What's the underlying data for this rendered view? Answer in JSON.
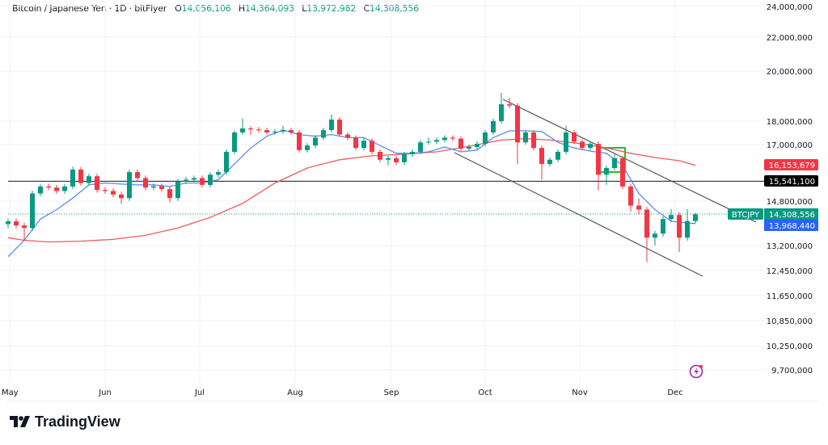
{
  "header": {
    "symbol_line": "Bitcoin / Japanese Yen · 1D · bitFlyer",
    "o_label": "O",
    "o_value": "14,056,106",
    "h_label": "H",
    "h_value": "14,364,093",
    "l_label": "L",
    "l_value": "13,972,982",
    "c_label": "C",
    "c_value": "14,308,556"
  },
  "chart_data": {
    "type": "candlestick",
    "title": "Bitcoin / Japanese Yen · 1D · bitFlyer",
    "y_scale": "log",
    "grid": true,
    "y_ticks": [
      "24,000,000",
      "22,000,000",
      "20,000,000",
      "18,000,000",
      "17,000,000",
      "14,800,000",
      "13,200,000",
      "12,450,000",
      "11,650,000",
      "10,850,000",
      "10,250,000",
      "9,700,000"
    ],
    "x_ticks": [
      "May",
      "Jun",
      "Jul",
      "Aug",
      "Sep",
      "Oct",
      "Nov",
      "Dec"
    ],
    "colors": {
      "up": "#089981",
      "down": "#f23645",
      "ma_fast": "#5b8af5",
      "ma_slow": "#f05a5a",
      "channel": "#555555",
      "box": "#22c322"
    },
    "candles_ohlc": [
      [
        13950000,
        14150000,
        13800000,
        14050000
      ],
      [
        14050000,
        14150000,
        13800000,
        13900000
      ],
      [
        13900000,
        14000000,
        13350000,
        13810000
      ],
      [
        13810000,
        15180000,
        13710000,
        15080000
      ],
      [
        15080000,
        15440000,
        14980000,
        15340000
      ],
      [
        15340000,
        15440000,
        15200000,
        15300000
      ],
      [
        15300000,
        15400000,
        15070000,
        15170000
      ],
      [
        15170000,
        15440000,
        15070000,
        15340000
      ],
      [
        15340000,
        16100000,
        15240000,
        15990000
      ],
      [
        15990000,
        16090000,
        15370000,
        15470000
      ],
      [
        15470000,
        15830000,
        15370000,
        15730000
      ],
      [
        15730000,
        15830000,
        15110000,
        15210000
      ],
      [
        15210000,
        15310000,
        15070000,
        15170000
      ],
      [
        15170000,
        15270000,
        14940000,
        15040000
      ],
      [
        15040000,
        15140000,
        14700000,
        14910000
      ],
      [
        14910000,
        15990000,
        14810000,
        15890000
      ],
      [
        15890000,
        15990000,
        15560000,
        15660000
      ],
      [
        15660000,
        15760000,
        15200000,
        15300000
      ],
      [
        15300000,
        15450000,
        15200000,
        15350000
      ],
      [
        15350000,
        15450000,
        15140000,
        15240000
      ],
      [
        15240000,
        15340000,
        14750000,
        14910000
      ],
      [
        14910000,
        15630000,
        14810000,
        15530000
      ],
      [
        15530000,
        15700000,
        15430000,
        15600000
      ],
      [
        15600000,
        15760000,
        15500000,
        15660000
      ],
      [
        15660000,
        15760000,
        15300000,
        15400000
      ],
      [
        15400000,
        15890000,
        15300000,
        15790000
      ],
      [
        15790000,
        15990000,
        15690000,
        15890000
      ],
      [
        15890000,
        16800000,
        15790000,
        16700000
      ],
      [
        16700000,
        17610000,
        16600000,
        17510000
      ],
      [
        17510000,
        18100000,
        17410000,
        17680000
      ],
      [
        17680000,
        17780000,
        17400000,
        17640000
      ],
      [
        17640000,
        17750000,
        17510000,
        17610000
      ],
      [
        17610000,
        17710000,
        17410000,
        17510000
      ],
      [
        17510000,
        17650000,
        17410000,
        17550000
      ],
      [
        17550000,
        17800000,
        17450000,
        17610000
      ],
      [
        17610000,
        17710000,
        17410000,
        17510000
      ],
      [
        17510000,
        17610000,
        16670000,
        16770000
      ],
      [
        16770000,
        17060000,
        16670000,
        16960000
      ],
      [
        16960000,
        17390000,
        16860000,
        17290000
      ],
      [
        17290000,
        17710000,
        17190000,
        17610000
      ],
      [
        17610000,
        18250000,
        17510000,
        18060000
      ],
      [
        18060000,
        18160000,
        17320000,
        17420000
      ],
      [
        17420000,
        17520000,
        17190000,
        17290000
      ],
      [
        17290000,
        17390000,
        16760000,
        16860000
      ],
      [
        16860000,
        17260000,
        16760000,
        17160000
      ],
      [
        17160000,
        17260000,
        16600000,
        16700000
      ],
      [
        16700000,
        16800000,
        16280000,
        16380000
      ],
      [
        16380000,
        16540000,
        16150000,
        16440000
      ],
      [
        16440000,
        16540000,
        16180000,
        16280000
      ],
      [
        16280000,
        16700000,
        16180000,
        16600000
      ],
      [
        16600000,
        16800000,
        16500000,
        16700000
      ],
      [
        16700000,
        17190000,
        16600000,
        17090000
      ],
      [
        17090000,
        17300000,
        16990000,
        17120000
      ],
      [
        17120000,
        17290000,
        17020000,
        17190000
      ],
      [
        17190000,
        17390000,
        17090000,
        17290000
      ],
      [
        17290000,
        17390000,
        17150000,
        17250000
      ],
      [
        17250000,
        17350000,
        16730000,
        16830000
      ],
      [
        16830000,
        17000000,
        16730000,
        16900000
      ],
      [
        16900000,
        17130000,
        16800000,
        17030000
      ],
      [
        17030000,
        17610000,
        16930000,
        17510000
      ],
      [
        17510000,
        18100000,
        17410000,
        18000000
      ],
      [
        18000000,
        19100000,
        17900000,
        18650000
      ],
      [
        18650000,
        18900000,
        18500000,
        18600000
      ],
      [
        18600000,
        18700000,
        16200000,
        17090000
      ],
      [
        17090000,
        17610000,
        16990000,
        17510000
      ],
      [
        17510000,
        17610000,
        16760000,
        16860000
      ],
      [
        16860000,
        16960000,
        15600000,
        16210000
      ],
      [
        16210000,
        16480000,
        16110000,
        16380000
      ],
      [
        16380000,
        16800000,
        16280000,
        16700000
      ],
      [
        16700000,
        17800000,
        16600000,
        17510000
      ],
      [
        17510000,
        17610000,
        17020000,
        17120000
      ],
      [
        17120000,
        17220000,
        16760000,
        16860000
      ],
      [
        16860000,
        17130000,
        16760000,
        17030000
      ],
      [
        17030000,
        17130000,
        15200000,
        15790000
      ],
      [
        15790000,
        16150000,
        15400000,
        16050000
      ],
      [
        16050000,
        16600000,
        15950000,
        16440000
      ],
      [
        16440000,
        16540000,
        15240000,
        15340000
      ],
      [
        15340000,
        15440000,
        14400000,
        14630000
      ],
      [
        14630000,
        14900000,
        14300000,
        14480000
      ],
      [
        14480000,
        14580000,
        12700000,
        13470000
      ],
      [
        13470000,
        13710000,
        13200000,
        13610000
      ],
      [
        13610000,
        14230000,
        13510000,
        14130000
      ],
      [
        14130000,
        14500000,
        14030000,
        14280000
      ],
      [
        14280000,
        14380000,
        13000000,
        13470000
      ],
      [
        13470000,
        14500000,
        13370000,
        14060000
      ],
      [
        14056106,
        14364093,
        13972982,
        14308556
      ]
    ],
    "ma_fast": [
      [
        0,
        12860000
      ],
      [
        2,
        13380000
      ],
      [
        4,
        14130000
      ],
      [
        6,
        14480000
      ],
      [
        8,
        14910000
      ],
      [
        10,
        15400000
      ],
      [
        12,
        15470000
      ],
      [
        14,
        15430000
      ],
      [
        16,
        15400000
      ],
      [
        18,
        15400000
      ],
      [
        20,
        15340000
      ],
      [
        22,
        15470000
      ],
      [
        24,
        15470000
      ],
      [
        26,
        15600000
      ],
      [
        28,
        16210000
      ],
      [
        30,
        16860000
      ],
      [
        32,
        17350000
      ],
      [
        34,
        17610000
      ],
      [
        36,
        17420000
      ],
      [
        38,
        17350000
      ],
      [
        40,
        17420000
      ],
      [
        42,
        17290000
      ],
      [
        44,
        17290000
      ],
      [
        46,
        16960000
      ],
      [
        48,
        16640000
      ],
      [
        50,
        16640000
      ],
      [
        52,
        16700000
      ],
      [
        54,
        16900000
      ],
      [
        56,
        16700000
      ],
      [
        58,
        16770000
      ],
      [
        60,
        17290000
      ],
      [
        62,
        17580000
      ],
      [
        64,
        17580000
      ],
      [
        66,
        17550000
      ],
      [
        68,
        17090000
      ],
      [
        70,
        16860000
      ],
      [
        72,
        16730000
      ],
      [
        74,
        16640000
      ],
      [
        76,
        16150000
      ],
      [
        78,
        15080000
      ],
      [
        80,
        14480000
      ],
      [
        82,
        14050000
      ],
      [
        84,
        13990000
      ],
      [
        85,
        13968440
      ]
    ],
    "ma_slow": [
      [
        0,
        13470000
      ],
      [
        2,
        13380000
      ],
      [
        5,
        13320000
      ],
      [
        9,
        13350000
      ],
      [
        13,
        13410000
      ],
      [
        17,
        13550000
      ],
      [
        21,
        13810000
      ],
      [
        25,
        14190000
      ],
      [
        29,
        14710000
      ],
      [
        33,
        15470000
      ],
      [
        37,
        16050000
      ],
      [
        41,
        16380000
      ],
      [
        45,
        16540000
      ],
      [
        49,
        16600000
      ],
      [
        53,
        16700000
      ],
      [
        57,
        16930000
      ],
      [
        61,
        17190000
      ],
      [
        64,
        17250000
      ],
      [
        67,
        17190000
      ],
      [
        71,
        17030000
      ],
      [
        74,
        16860000
      ],
      [
        77,
        16640000
      ],
      [
        80,
        16470000
      ],
      [
        83,
        16340000
      ],
      [
        85,
        16153679
      ]
    ],
    "horizontal_line": 15541100,
    "price_tags": {
      "ma_slow": "16,153,679",
      "horizontal_line": "15,541,100",
      "last_price": "14,308,556",
      "ma_fast": "13,968,440",
      "symbol": "BTCJPY"
    }
  },
  "branding": {
    "logo_text": "TradingView"
  }
}
